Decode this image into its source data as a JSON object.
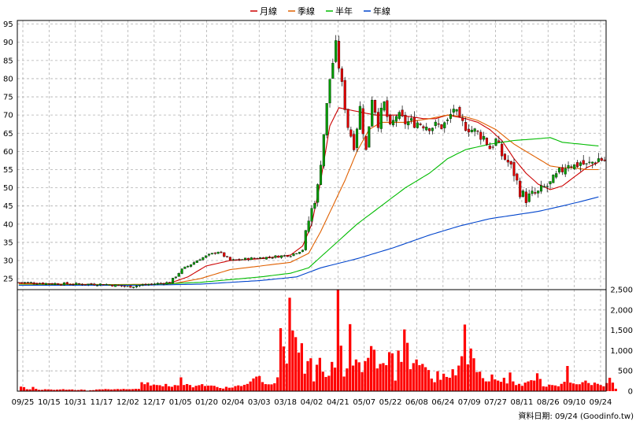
{
  "legend": [
    {
      "label": "月線",
      "color": "#cc0000"
    },
    {
      "label": "季線",
      "color": "#e06000"
    },
    {
      "label": "半年",
      "color": "#00bb00"
    },
    {
      "label": "年線",
      "color": "#0044cc"
    }
  ],
  "footer": "資料日期: 09/24  (Goodinfo.tw)",
  "chart_data": [
    {
      "type": "candlestick",
      "title": "",
      "ylim": [
        22,
        96
      ],
      "y_ticks": [
        25,
        30,
        35,
        40,
        45,
        50,
        55,
        60,
        65,
        70,
        75,
        80,
        85,
        90,
        95
      ],
      "grid": true,
      "up_color": "#009900",
      "down_color": "#dd0000",
      "x_labels": [
        "09/25",
        "10/15",
        "10/31",
        "11/17",
        "12/02",
        "12/17",
        "01/05",
        "01/20",
        "02/04",
        "03/03",
        "03/18",
        "04/02",
        "04/21",
        "05/07",
        "05/22",
        "06/08",
        "06/24",
        "07/09",
        "07/27",
        "08/11",
        "08/26",
        "09/10",
        "09/24"
      ],
      "close_path": [
        [
          0,
          24
        ],
        [
          10,
          23.7
        ],
        [
          20,
          23.5
        ],
        [
          28,
          23.5
        ],
        [
          36,
          22.8
        ],
        [
          44,
          23.5
        ],
        [
          50,
          24
        ],
        [
          54,
          27.5
        ],
        [
          60,
          30.5
        ],
        [
          66,
          32.5
        ],
        [
          70,
          30
        ],
        [
          76,
          30.5
        ],
        [
          84,
          31
        ],
        [
          90,
          31.5
        ],
        [
          94,
          33
        ],
        [
          95,
          38
        ],
        [
          97,
          44
        ],
        [
          99,
          50
        ],
        [
          101,
          65
        ],
        [
          103,
          80
        ],
        [
          105,
          89
        ],
        [
          107,
          78
        ],
        [
          109,
          67
        ],
        [
          111,
          62
        ],
        [
          113,
          72
        ],
        [
          115,
          60
        ],
        [
          117,
          75
        ],
        [
          119,
          68
        ],
        [
          121,
          73
        ],
        [
          123,
          66
        ],
        [
          125,
          70
        ],
        [
          128,
          68
        ],
        [
          132,
          68
        ],
        [
          136,
          67
        ],
        [
          140,
          67
        ],
        [
          142,
          68
        ],
        [
          144,
          72
        ],
        [
          146,
          68
        ],
        [
          148,
          67
        ],
        [
          150,
          66
        ],
        [
          152,
          65
        ],
        [
          154,
          64
        ],
        [
          156,
          61
        ],
        [
          158,
          63
        ],
        [
          160,
          59
        ],
        [
          162,
          57
        ],
        [
          164,
          54
        ],
        [
          166,
          49
        ],
        [
          168,
          47
        ],
        [
          170,
          48
        ],
        [
          172,
          48.5
        ],
        [
          174,
          50
        ],
        [
          176,
          51
        ],
        [
          178,
          53
        ],
        [
          180,
          55
        ],
        [
          182,
          57
        ],
        [
          184,
          56
        ],
        [
          186,
          57
        ],
        [
          188,
          56
        ],
        [
          190,
          57
        ],
        [
          192,
          58
        ],
        [
          194,
          57.5
        ]
      ],
      "series": [
        {
          "name": "月線",
          "color": "#cc0000",
          "points": [
            [
              0,
              23.8
            ],
            [
              20,
              23.4
            ],
            [
              40,
              23.2
            ],
            [
              50,
              23.8
            ],
            [
              56,
              25.5
            ],
            [
              62,
              28.5
            ],
            [
              70,
              30
            ],
            [
              80,
              30.5
            ],
            [
              90,
              31.5
            ],
            [
              94,
              34
            ],
            [
              97,
              40
            ],
            [
              100,
              52
            ],
            [
              103,
              67
            ],
            [
              106,
              72
            ],
            [
              112,
              71
            ],
            [
              118,
              70
            ],
            [
              126,
              70
            ],
            [
              134,
              69
            ],
            [
              138,
              69
            ],
            [
              142,
              70
            ],
            [
              148,
              69
            ],
            [
              152,
              68
            ],
            [
              156,
              66
            ],
            [
              160,
              63
            ],
            [
              164,
              58
            ],
            [
              168,
              54
            ],
            [
              172,
              51
            ],
            [
              176,
              49.5
            ],
            [
              180,
              50.5
            ],
            [
              184,
              53
            ],
            [
              188,
              55.5
            ],
            [
              192,
              57
            ]
          ]
        },
        {
          "name": "季線",
          "color": "#e06000",
          "points": [
            [
              0,
              23.6
            ],
            [
              30,
              23.4
            ],
            [
              50,
              23.5
            ],
            [
              60,
              25
            ],
            [
              70,
              27.5
            ],
            [
              80,
              28.5
            ],
            [
              90,
              29.5
            ],
            [
              96,
              32
            ],
            [
              100,
              38
            ],
            [
              104,
              45
            ],
            [
              108,
              52
            ],
            [
              112,
              60
            ],
            [
              116,
              66
            ],
            [
              120,
              68
            ],
            [
              128,
              68
            ],
            [
              136,
              69
            ],
            [
              142,
              70
            ],
            [
              148,
              69.5
            ],
            [
              152,
              68.5
            ],
            [
              158,
              66
            ],
            [
              164,
              62
            ],
            [
              168,
              60
            ],
            [
              172,
              58
            ],
            [
              176,
              56
            ],
            [
              180,
              55.5
            ],
            [
              184,
              55.5
            ],
            [
              188,
              55
            ],
            [
              192,
              55
            ]
          ]
        },
        {
          "name": "半年",
          "color": "#00bb00",
          "points": [
            [
              0,
              23.3
            ],
            [
              40,
              23.3
            ],
            [
              60,
              24
            ],
            [
              80,
              25.5
            ],
            [
              90,
              26.5
            ],
            [
              96,
              28
            ],
            [
              104,
              34
            ],
            [
              112,
              40
            ],
            [
              120,
              45
            ],
            [
              128,
              50
            ],
            [
              136,
              54
            ],
            [
              142,
              58
            ],
            [
              148,
              60.5
            ],
            [
              156,
              62
            ],
            [
              164,
              63
            ],
            [
              172,
              63.5
            ],
            [
              176,
              63.8
            ],
            [
              180,
              62.5
            ],
            [
              186,
              62
            ],
            [
              192,
              61.5
            ]
          ]
        },
        {
          "name": "年線",
          "color": "#0044cc",
          "points": [
            [
              0,
              23.2
            ],
            [
              40,
              23.2
            ],
            [
              60,
              23.5
            ],
            [
              80,
              24.5
            ],
            [
              92,
              25.5
            ],
            [
              100,
              28
            ],
            [
              112,
              30.5
            ],
            [
              124,
              33.5
            ],
            [
              136,
              37
            ],
            [
              146,
              39.5
            ],
            [
              156,
              41.5
            ],
            [
              164,
              42.5
            ],
            [
              172,
              43.5
            ],
            [
              180,
              45
            ],
            [
              186,
              46.2
            ],
            [
              192,
              47.5
            ]
          ]
        }
      ]
    },
    {
      "type": "bar",
      "title": "",
      "ylim": [
        0,
        2500
      ],
      "y_ticks": [
        0,
        500,
        1000,
        1500,
        2000,
        2500
      ],
      "y_tick_labels": [
        "0",
        "500",
        "1,000",
        "1,500",
        "2,000",
        "2,500"
      ],
      "bar_color": "#ff0000",
      "grid": true,
      "values": [
        112,
        99,
        48,
        45,
        104,
        58,
        33,
        33,
        47,
        44,
        41,
        32,
        38,
        41,
        49,
        36,
        40,
        42,
        25,
        28,
        40,
        33,
        12,
        23,
        25,
        41,
        45,
        44,
        53,
        48,
        42,
        47,
        52,
        47,
        56,
        47,
        48,
        51,
        58,
        56,
        220,
        172,
        215,
        138,
        161,
        151,
        146,
        120,
        178,
        120,
        108,
        150,
        142,
        340,
        152,
        175,
        151,
        95,
        132,
        147,
        172,
        127,
        136,
        138,
        132,
        102,
        78,
        63,
        107,
        84,
        89,
        124,
        142,
        125,
        156,
        178,
        238,
        313,
        358,
        372,
        223,
        173,
        168,
        167,
        194,
        340,
        1550,
        1100,
        680,
        2300,
        1490,
        1330,
        950,
        1180,
        430,
        740,
        810,
        240,
        650,
        820,
        480,
        350,
        380,
        720,
        580,
        2500,
        1120,
        360,
        560,
        1650,
        630,
        780,
        710,
        470,
        740,
        820,
        1110,
        1020,
        560,
        670,
        690,
        640,
        960,
        930,
        260,
        1000,
        720,
        1520,
        1190,
        540,
        690,
        780,
        640,
        670,
        590,
        520,
        310,
        220,
        490,
        280,
        430,
        350,
        330,
        540,
        390,
        630,
        860,
        1640,
        660,
        1050,
        810,
        470,
        480,
        320,
        240,
        240,
        410,
        290,
        260,
        230,
        330,
        190,
        460,
        240,
        150,
        180,
        130,
        210,
        240,
        270,
        260,
        440,
        300,
        120,
        110,
        160,
        150,
        140,
        120,
        180,
        230,
        620,
        210,
        190,
        170,
        170,
        220,
        260,
        200,
        150,
        210,
        180,
        150,
        120,
        200,
        330,
        210,
        60
      ]
    }
  ]
}
